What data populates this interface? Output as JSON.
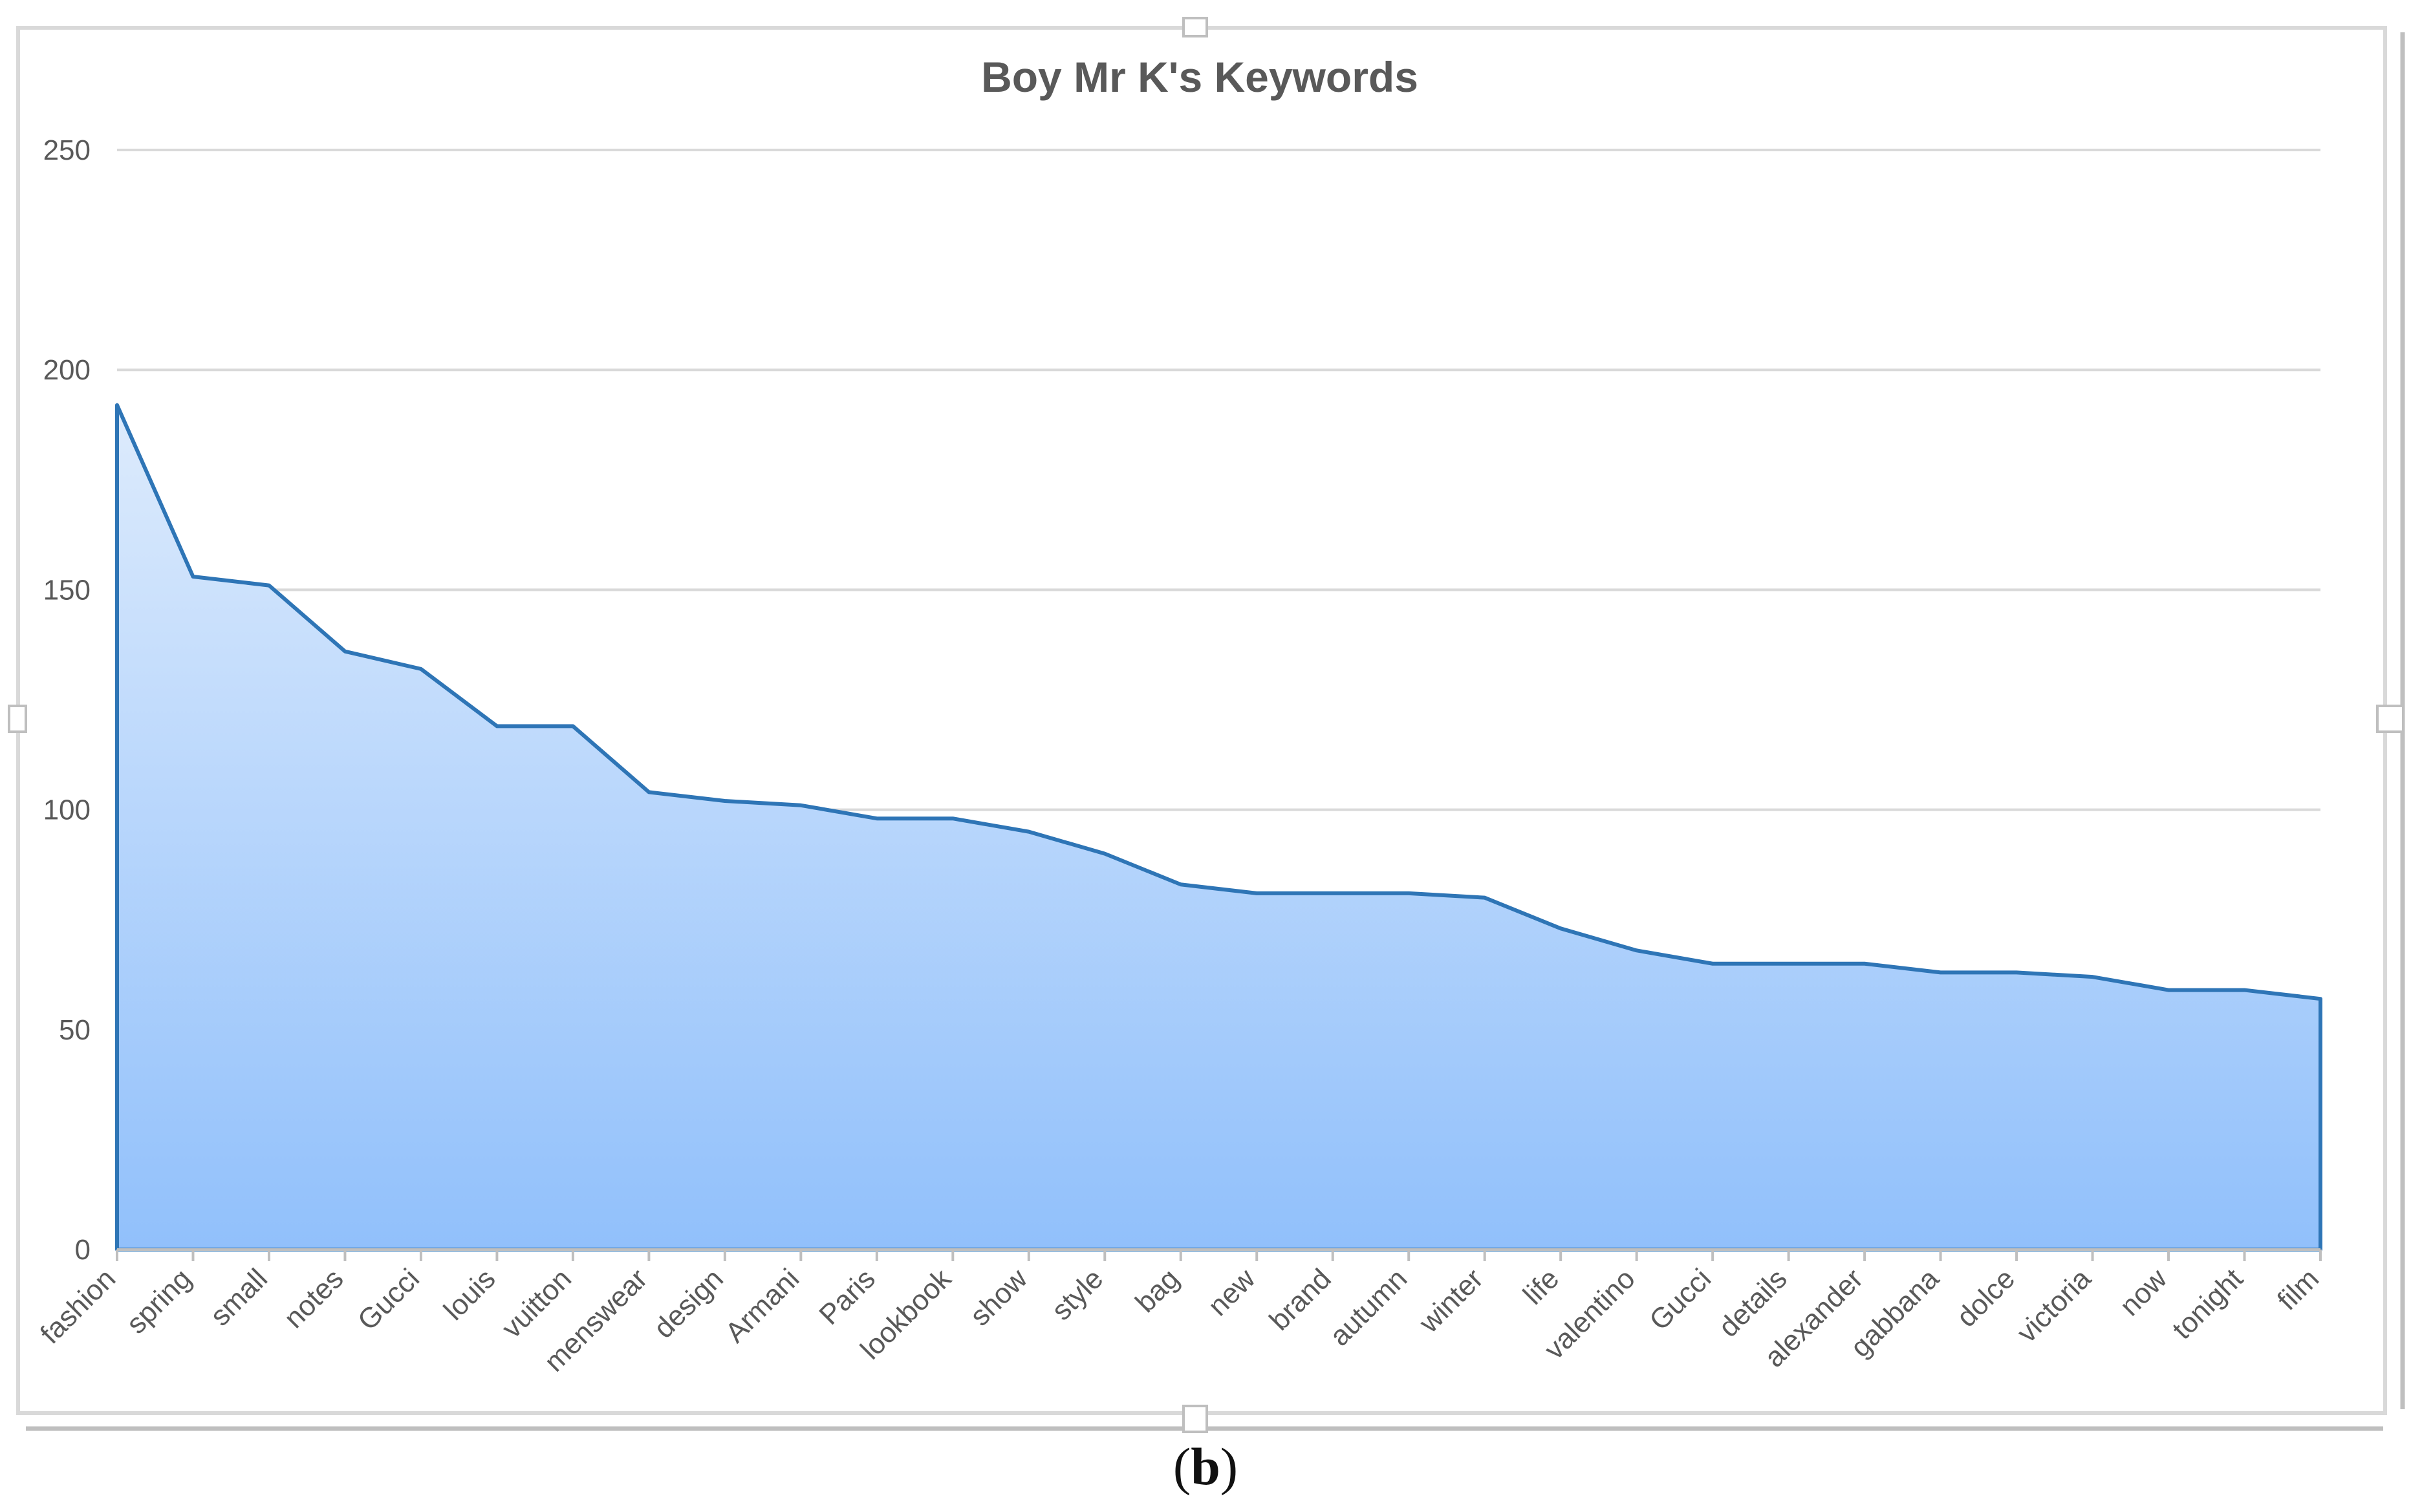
{
  "caption": {
    "open": "(",
    "letter": "b",
    "close": ")"
  },
  "chart_data": {
    "type": "area",
    "title": "Boy Mr K's Keywords",
    "xlabel": "",
    "ylabel": "",
    "ylim": [
      0,
      250
    ],
    "yticks": [
      0,
      50,
      100,
      150,
      200,
      250
    ],
    "grid": true,
    "legend": "none",
    "line_color": "#2E75B6",
    "fill_top_color": "#DDEBFC",
    "fill_bottom_color": "#91C0FB",
    "categories": [
      "fashion",
      "spring",
      "small",
      "notes",
      "Gucci",
      "louis",
      "vuitton",
      "menswear",
      "design",
      "Armani",
      "Paris",
      "lookbook",
      "show",
      "style",
      "bag",
      "new",
      "brand",
      "autumn",
      "winter",
      "life",
      "valentino",
      "Gucci",
      "details",
      "alexander",
      "gabbana",
      "dolce",
      "victoria",
      "now",
      "tonight",
      "film"
    ],
    "series": [
      {
        "values": [
          192,
          153,
          151,
          136,
          132,
          119,
          119,
          104,
          102,
          101,
          98,
          98,
          95,
          90,
          83,
          81,
          81,
          81,
          80,
          73,
          68,
          65,
          65,
          65,
          63,
          63,
          62,
          59,
          59,
          57
        ]
      }
    ]
  }
}
